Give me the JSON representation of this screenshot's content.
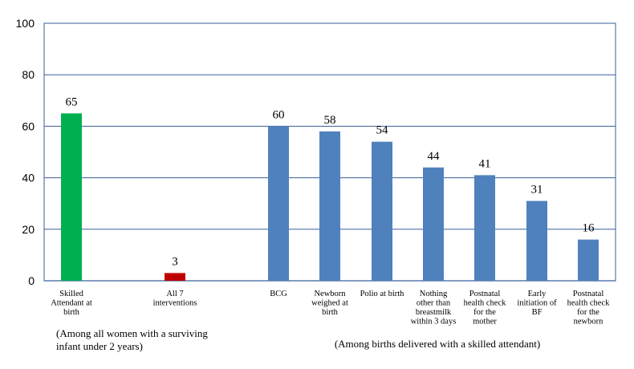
{
  "chart_data": {
    "type": "bar",
    "title": "",
    "xlabel": "",
    "ylabel": "",
    "ylim": [
      0,
      100
    ],
    "yticks": [
      0,
      20,
      40,
      60,
      80,
      100
    ],
    "grid": true,
    "legend": "none",
    "colors": {
      "green": "#00b050",
      "red": "#c00000",
      "blue": "#4f81bd",
      "grid": "#3a5f9a"
    },
    "bars": [
      {
        "category": [
          "Skilled",
          "Attendant at",
          "birth"
        ],
        "value": 65,
        "label": "65",
        "color": "green"
      },
      {
        "category": [
          "All 7",
          "interventions"
        ],
        "value": 3,
        "label": "3",
        "color": "red"
      },
      {
        "category": [
          "BCG"
        ],
        "value": 60,
        "label": "60",
        "color": "blue"
      },
      {
        "category": [
          "Newborn",
          "weighed at",
          "birth"
        ],
        "value": 58,
        "label": "58",
        "color": "blue"
      },
      {
        "category": [
          "Polio at birth"
        ],
        "value": 54,
        "label": "54",
        "color": "blue"
      },
      {
        "category": [
          "Nothing",
          "other than",
          "breastmilk",
          "within 3 days"
        ],
        "value": 44,
        "label": "44",
        "color": "blue"
      },
      {
        "category": [
          "Postnatal",
          "health check",
          "for the",
          "mother"
        ],
        "value": 41,
        "label": "41",
        "color": "blue"
      },
      {
        "category": [
          "Early",
          "initiation of",
          "BF"
        ],
        "value": 31,
        "label": "31",
        "color": "blue"
      },
      {
        "category": [
          "Postnatal",
          "health check",
          "for the",
          "newborn"
        ],
        "value": 16,
        "label": "16",
        "color": "blue"
      }
    ],
    "group_notes": [
      [
        "(Among all women with a surviving",
        "infant under 2 years)"
      ],
      [
        "(Among births delivered with a skilled attendant)"
      ]
    ]
  }
}
